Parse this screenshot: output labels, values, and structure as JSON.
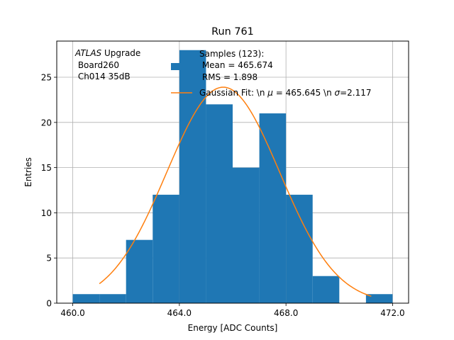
{
  "chart_data": {
    "type": "bar",
    "title": "Run 761",
    "xlabel": "Energy [ADC Counts]",
    "ylabel": "Entries",
    "xlim": [
      459.4,
      472.6
    ],
    "ylim": [
      0,
      29
    ],
    "grid": true,
    "x_ticks": [
      460,
      464,
      468,
      472
    ],
    "x_tick_labels": [
      "460.0",
      "464.0",
      "468.0",
      "472.0"
    ],
    "y_ticks": [
      0,
      5,
      10,
      15,
      20,
      25
    ],
    "y_tick_labels": [
      "0",
      "5",
      "10",
      "15",
      "20",
      "25"
    ],
    "histogram": {
      "name": "Samples (123):\n Mean = 465.674\n RMS = 1.898",
      "color": "#1f77b4",
      "bin_edges": [
        460,
        461,
        462,
        463,
        464,
        465,
        466,
        467,
        468,
        469,
        470,
        471,
        472
      ],
      "counts": [
        1,
        1,
        7,
        12,
        28,
        22,
        15,
        21,
        12,
        3,
        0,
        1
      ]
    },
    "fit": {
      "name": "Gaussian Fit: \\n $\\mu$ = 465.645 \\n $\\sigma$=2.117",
      "color": "#ff7f0e",
      "mu": 465.645,
      "sigma": 2.117,
      "amplitude": 23.9,
      "x_range": [
        461,
        471.2
      ]
    },
    "annotation": {
      "atlas": "ATLAS",
      "upgrade": " Upgrade",
      "line2": " Board260",
      "line3": " Ch014 35dB"
    },
    "legend": {
      "position": "top-center",
      "samples_lines": [
        "Samples (123):",
        " Mean = 465.674",
        " RMS = 1.898"
      ],
      "fit_label_prefix": "Gaussian Fit: \\n ",
      "fit_mu_symbol": "μ",
      "fit_mid": " = 465.645 \\n ",
      "fit_sigma_symbol": "σ",
      "fit_suffix": "=2.117"
    }
  }
}
